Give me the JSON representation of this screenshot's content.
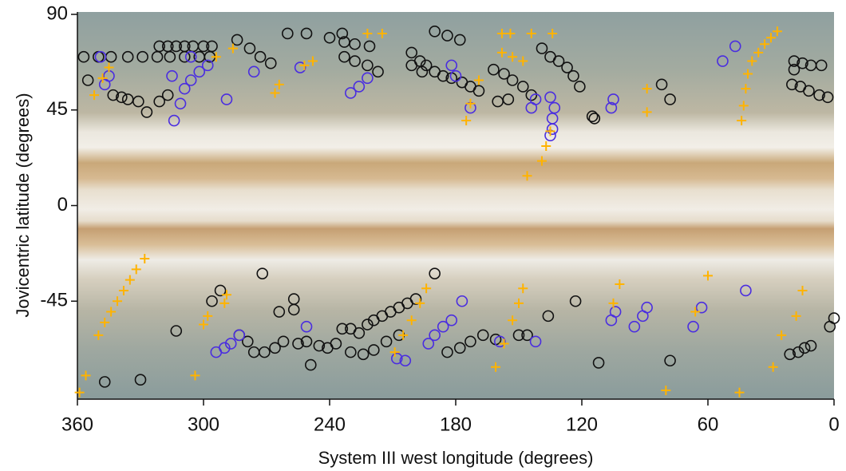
{
  "chart_data": {
    "type": "scatter",
    "x_label": "System III west longitude (degrees)",
    "y_label": "Jovicentric latitude (degrees)",
    "xlim": [
      360,
      0
    ],
    "ylim": [
      -90,
      90
    ],
    "xticks": [
      360,
      300,
      240,
      180,
      120,
      60,
      0
    ],
    "yticks": [
      -45,
      0,
      45,
      90
    ],
    "series": [
      {
        "color": "#111111",
        "marker": "circle",
        "x": [
          357,
          350,
          344,
          336,
          329,
          322,
          316,
          309,
          302,
          297,
          321,
          317,
          313,
          309,
          305,
          300,
          296,
          284,
          278,
          273,
          268,
          355,
          343,
          339,
          336,
          331,
          327,
          321,
          317,
          260,
          251,
          240,
          234,
          233,
          228,
          222,
          217,
          233,
          228,
          221,
          201,
          197,
          194,
          190,
          186,
          182,
          177,
          173,
          169,
          190,
          184,
          178,
          201,
          196,
          162,
          157,
          153,
          148,
          144,
          155,
          160,
          139,
          135,
          131,
          127,
          124,
          121,
          115,
          114,
          78,
          82,
          19,
          15,
          11,
          6,
          20,
          16,
          12,
          7,
          3,
          19,
          292,
          296,
          313,
          283,
          279,
          276,
          271,
          266,
          262,
          272,
          264,
          257,
          257,
          255,
          251,
          249,
          245,
          241,
          237,
          234,
          230,
          226,
          222,
          219,
          215,
          211,
          207,
          203,
          199,
          230,
          224,
          219,
          213,
          207,
          190,
          184,
          178,
          173,
          167,
          161,
          150,
          146,
          136,
          123,
          112,
          78,
          21,
          17,
          14,
          11,
          2,
          0,
          330,
          347
        ],
        "values": [
          70,
          70,
          70,
          70,
          70,
          70,
          70,
          70,
          70,
          70,
          75,
          75,
          75,
          75,
          75,
          75,
          75,
          78,
          74,
          70,
          67,
          59,
          52,
          51,
          50,
          49,
          44,
          49,
          52,
          81,
          81,
          79,
          81,
          70,
          68,
          66,
          63,
          77,
          76,
          75,
          72,
          68,
          66,
          63,
          61,
          60,
          58,
          56,
          54,
          82,
          80,
          78,
          66,
          63,
          64,
          62,
          59,
          56,
          52,
          50,
          49,
          74,
          70,
          68,
          65,
          61,
          56,
          42,
          41,
          50,
          57,
          68,
          67,
          66,
          66,
          57,
          56,
          54,
          52,
          51,
          64,
          -40,
          -45,
          -59,
          -61,
          -64,
          -69,
          -69,
          -67,
          -64,
          -32,
          -50,
          -44,
          -49,
          -65,
          -64,
          -75,
          -66,
          -67,
          -65,
          -58,
          -58,
          -60,
          -56,
          -54,
          -52,
          -50,
          -48,
          -46,
          -44,
          -69,
          -70,
          -68,
          -64,
          -61,
          -32,
          -69,
          -67,
          -64,
          -61,
          -63,
          -61,
          -61,
          -52,
          -45,
          -74,
          -73,
          -70,
          -69,
          -67,
          -66,
          -57,
          -53,
          -82,
          -83
        ]
      },
      {
        "color": "#4a2de0",
        "marker": "circle",
        "x": [
          349,
          347,
          345,
          315,
          314,
          311,
          309,
          306,
          302,
          298,
          306,
          289,
          276,
          230,
          226,
          222,
          254,
          182,
          180,
          173,
          144,
          142,
          135,
          135,
          134,
          134,
          133,
          106,
          105,
          53,
          47,
          294,
          290,
          287,
          283,
          251,
          208,
          204,
          193,
          190,
          186,
          182,
          177,
          159,
          142,
          106,
          104,
          95,
          91,
          89,
          67,
          63,
          42
        ],
        "values": [
          70,
          57,
          61,
          61,
          40,
          48,
          55,
          59,
          63,
          66,
          70,
          50,
          63,
          53,
          56,
          60,
          65,
          66,
          61,
          46,
          46,
          50,
          51,
          33,
          36,
          41,
          46,
          46,
          50,
          68,
          75,
          -69,
          -67,
          -65,
          -61,
          -57,
          -72,
          -73,
          -65,
          -61,
          -57,
          -54,
          -45,
          -64,
          -64,
          -54,
          -50,
          -57,
          -52,
          -48,
          -57,
          -48,
          -40
        ]
      },
      {
        "color": "#ffb300",
        "marker": "plus",
        "x": [
          350,
          347,
          344,
          341,
          338,
          335,
          332,
          328,
          352,
          348,
          345,
          294,
          286,
          266,
          264,
          252,
          248,
          222,
          215,
          175,
          173,
          169,
          158,
          154,
          158,
          153,
          148,
          144,
          134,
          139,
          137,
          135,
          146,
          89,
          89,
          44,
          43,
          42,
          41,
          39,
          36,
          33,
          30,
          27,
          300,
          298,
          290,
          289,
          161,
          157,
          153,
          150,
          148,
          209,
          205,
          201,
          197,
          194,
          105,
          102,
          66,
          60,
          25,
          18,
          15,
          29,
          80,
          45,
          304,
          356,
          359
        ],
        "values": [
          -61,
          -55,
          -50,
          -45,
          -40,
          -35,
          -30,
          -25,
          52,
          60,
          65,
          70,
          74,
          53,
          57,
          66,
          68,
          81,
          81,
          40,
          48,
          59,
          81,
          81,
          72,
          70,
          68,
          81,
          81,
          21,
          28,
          35,
          14,
          55,
          44,
          40,
          47,
          55,
          62,
          68,
          72,
          76,
          79,
          82,
          -56,
          -52,
          -46,
          -42,
          -76,
          -65,
          -54,
          -46,
          -39,
          -69,
          -61,
          -54,
          -46,
          -39,
          -46,
          -37,
          -50,
          -33,
          -61,
          -52,
          -40,
          -76,
          -87,
          -88,
          -80,
          -80,
          -88
        ]
      }
    ]
  }
}
